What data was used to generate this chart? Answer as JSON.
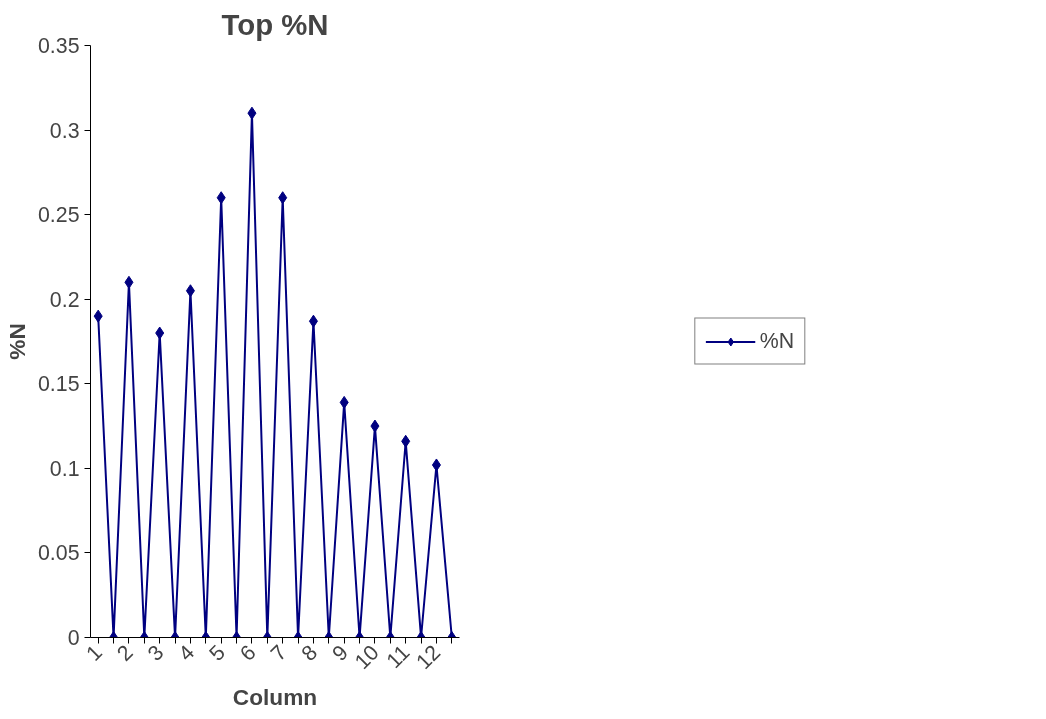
{
  "chart_data": {
    "type": "line",
    "title": "Top %N",
    "xlabel": "Column",
    "ylabel": "%N",
    "categories": [
      "1",
      null,
      "2",
      null,
      "3",
      null,
      "4",
      null,
      "5",
      null,
      "6",
      null,
      "7",
      null,
      "8",
      null,
      "9",
      null,
      "10",
      null,
      "11",
      null,
      "12",
      null
    ],
    "series": [
      {
        "name": "%N",
        "color": "#000080",
        "values": [
          0.19,
          0,
          0.21,
          0,
          0.18,
          0,
          0.205,
          0,
          0.26,
          0,
          0.31,
          0,
          0.26,
          0,
          0.187,
          0,
          0.139,
          0,
          0.125,
          0,
          0.116,
          0,
          0.102,
          0
        ]
      }
    ],
    "ylim": [
      0,
      0.35
    ],
    "yticks": [
      0,
      0.05,
      0.1,
      0.15,
      0.2,
      0.25,
      0.3,
      0.35
    ],
    "grid": false,
    "legend": "right",
    "marker": "diamond",
    "line_style": "solid"
  }
}
